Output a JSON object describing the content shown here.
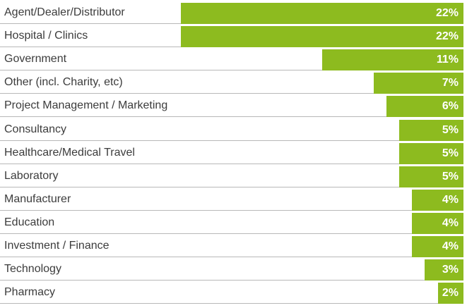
{
  "chart_data": {
    "type": "bar",
    "orientation": "horizontal",
    "categories": [
      "Agent/Dealer/Distributor",
      "Hospital / Clinics",
      "Government",
      "Other (incl. Charity, etc)",
      "Project Management / Marketing",
      "Consultancy",
      "Healthcare/Medical Travel",
      "Laboratory",
      "Manufacturer",
      "Education",
      "Investment / Finance",
      "Technology",
      "Pharmacy"
    ],
    "values": [
      22,
      22,
      11,
      7,
      6,
      5,
      5,
      5,
      4,
      4,
      4,
      3,
      2
    ],
    "value_labels": [
      "22%",
      "22%",
      "11%",
      "7%",
      "6%",
      "5%",
      "5%",
      "5%",
      "4%",
      "4%",
      "4%",
      "3%",
      "2%"
    ],
    "xlim": [
      0,
      22
    ],
    "grid": false,
    "legend": "none"
  },
  "colors": {
    "bar": "#8dbb1f",
    "value_text": "#ffffff",
    "category_text": "#3c3c3c",
    "separator": "#b8b8b8"
  }
}
